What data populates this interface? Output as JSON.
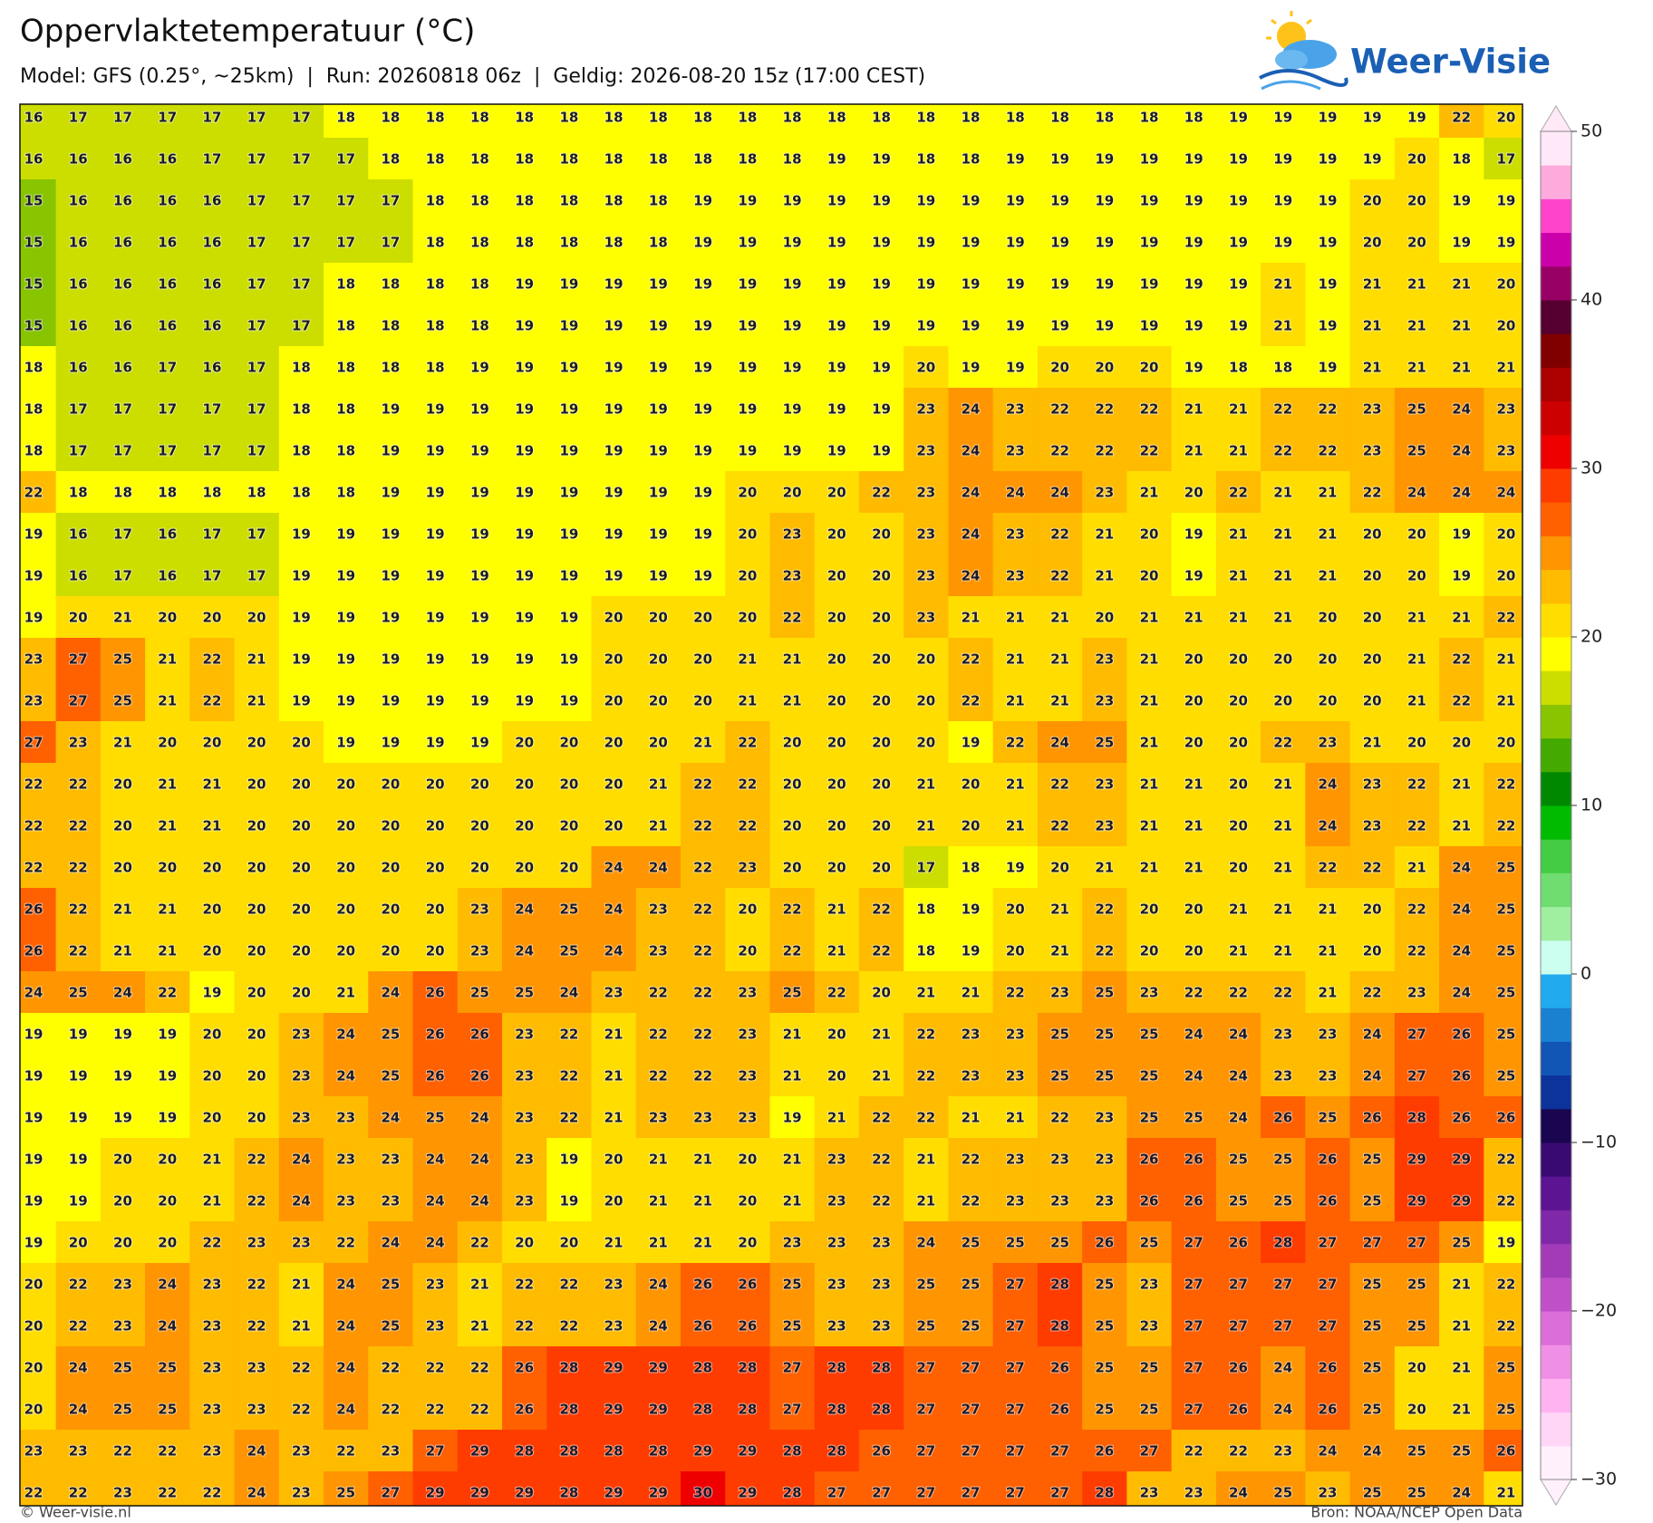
{
  "header": {
    "title": "Oppervlaktetemperatuur (°C)",
    "subtitle": "Model: GFS (0.25°, ~25km)  |  Run: 20260818 06z  |  Geldig: 2026-08-20 15z (17:00 CEST)",
    "logo": "Weer-Visie"
  },
  "map": {
    "values": [
      [
        16,
        17,
        17,
        17,
        17,
        17,
        17,
        18,
        18,
        18,
        18,
        18,
        18,
        18,
        18,
        18,
        18,
        18,
        18,
        18,
        18,
        18,
        18,
        18,
        18,
        18,
        18,
        19,
        19,
        19,
        19,
        19,
        22,
        20
      ],
      [
        16,
        16,
        16,
        16,
        17,
        17,
        17,
        17,
        18,
        18,
        18,
        18,
        18,
        18,
        18,
        18,
        18,
        18,
        19,
        19,
        18,
        18,
        19,
        19,
        19,
        19,
        19,
        19,
        19,
        19,
        19,
        20,
        18,
        17
      ],
      [
        15,
        16,
        16,
        16,
        16,
        17,
        17,
        17,
        17,
        18,
        18,
        18,
        18,
        18,
        18,
        19,
        19,
        19,
        19,
        19,
        19,
        19,
        19,
        19,
        19,
        19,
        19,
        19,
        19,
        19,
        20,
        20,
        19,
        19
      ],
      [
        15,
        16,
        16,
        16,
        16,
        17,
        17,
        17,
        17,
        18,
        18,
        18,
        18,
        18,
        18,
        19,
        19,
        19,
        19,
        19,
        19,
        19,
        19,
        19,
        19,
        19,
        19,
        19,
        19,
        19,
        20,
        20,
        19,
        19
      ],
      [
        15,
        16,
        16,
        16,
        16,
        17,
        17,
        18,
        18,
        18,
        18,
        19,
        19,
        19,
        19,
        19,
        19,
        19,
        19,
        19,
        19,
        19,
        19,
        19,
        19,
        19,
        19,
        19,
        21,
        19,
        21,
        21,
        21,
        20
      ],
      [
        15,
        16,
        16,
        16,
        16,
        17,
        17,
        18,
        18,
        18,
        18,
        19,
        19,
        19,
        19,
        19,
        19,
        19,
        19,
        19,
        19,
        19,
        19,
        19,
        19,
        19,
        19,
        19,
        21,
        19,
        21,
        21,
        21,
        20
      ],
      [
        18,
        16,
        16,
        17,
        16,
        17,
        18,
        18,
        18,
        18,
        19,
        19,
        19,
        19,
        19,
        19,
        19,
        19,
        19,
        19,
        20,
        19,
        19,
        20,
        20,
        20,
        19,
        18,
        18,
        19,
        21,
        21,
        21,
        21
      ],
      [
        18,
        17,
        17,
        17,
        17,
        17,
        18,
        18,
        19,
        19,
        19,
        19,
        19,
        19,
        19,
        19,
        19,
        19,
        19,
        19,
        23,
        24,
        23,
        22,
        22,
        22,
        21,
        21,
        22,
        22,
        23,
        25,
        24,
        23
      ],
      [
        18,
        17,
        17,
        17,
        17,
        17,
        18,
        18,
        19,
        19,
        19,
        19,
        19,
        19,
        19,
        19,
        19,
        19,
        19,
        19,
        23,
        24,
        23,
        22,
        22,
        22,
        21,
        21,
        22,
        22,
        23,
        25,
        24,
        23
      ],
      [
        22,
        18,
        18,
        18,
        18,
        18,
        18,
        18,
        19,
        19,
        19,
        19,
        19,
        19,
        19,
        19,
        20,
        20,
        20,
        22,
        23,
        24,
        24,
        24,
        23,
        21,
        20,
        22,
        21,
        21,
        22,
        24,
        24,
        24
      ],
      [
        19,
        16,
        17,
        16,
        17,
        17,
        19,
        19,
        19,
        19,
        19,
        19,
        19,
        19,
        19,
        19,
        20,
        23,
        20,
        20,
        23,
        24,
        23,
        22,
        21,
        20,
        19,
        21,
        21,
        21,
        20,
        20,
        19,
        20
      ],
      [
        19,
        16,
        17,
        16,
        17,
        17,
        19,
        19,
        19,
        19,
        19,
        19,
        19,
        19,
        19,
        19,
        20,
        23,
        20,
        20,
        23,
        24,
        23,
        22,
        21,
        20,
        19,
        21,
        21,
        21,
        20,
        20,
        19,
        20
      ],
      [
        19,
        20,
        21,
        20,
        20,
        20,
        19,
        19,
        19,
        19,
        19,
        19,
        19,
        20,
        20,
        20,
        20,
        22,
        20,
        20,
        23,
        21,
        21,
        21,
        20,
        21,
        21,
        21,
        21,
        20,
        20,
        21,
        21,
        22
      ],
      [
        23,
        27,
        25,
        21,
        22,
        21,
        19,
        19,
        19,
        19,
        19,
        19,
        19,
        20,
        20,
        20,
        21,
        21,
        20,
        20,
        20,
        22,
        21,
        21,
        23,
        21,
        20,
        20,
        20,
        20,
        20,
        21,
        22,
        21
      ],
      [
        23,
        27,
        25,
        21,
        22,
        21,
        19,
        19,
        19,
        19,
        19,
        19,
        19,
        20,
        20,
        20,
        21,
        21,
        20,
        20,
        20,
        22,
        21,
        21,
        23,
        21,
        20,
        20,
        20,
        20,
        20,
        21,
        22,
        21
      ],
      [
        27,
        23,
        21,
        20,
        20,
        20,
        20,
        19,
        19,
        19,
        19,
        20,
        20,
        20,
        20,
        21,
        22,
        20,
        20,
        20,
        20,
        19,
        22,
        24,
        25,
        21,
        20,
        20,
        22,
        23,
        21,
        20,
        20,
        20
      ],
      [
        22,
        22,
        20,
        21,
        21,
        20,
        20,
        20,
        20,
        20,
        20,
        20,
        20,
        20,
        21,
        22,
        22,
        20,
        20,
        20,
        21,
        20,
        21,
        22,
        23,
        21,
        21,
        20,
        21,
        24,
        23,
        22,
        21,
        22
      ],
      [
        22,
        22,
        20,
        21,
        21,
        20,
        20,
        20,
        20,
        20,
        20,
        20,
        20,
        20,
        21,
        22,
        22,
        20,
        20,
        20,
        21,
        20,
        21,
        22,
        23,
        21,
        21,
        20,
        21,
        24,
        23,
        22,
        21,
        22
      ],
      [
        22,
        22,
        20,
        20,
        20,
        20,
        20,
        20,
        20,
        20,
        20,
        20,
        20,
        24,
        24,
        22,
        23,
        20,
        20,
        20,
        17,
        18,
        19,
        20,
        21,
        21,
        21,
        20,
        21,
        22,
        22,
        21,
        24,
        25
      ],
      [
        26,
        22,
        21,
        21,
        20,
        20,
        20,
        20,
        20,
        20,
        23,
        24,
        25,
        24,
        23,
        22,
        20,
        22,
        21,
        22,
        18,
        19,
        20,
        21,
        22,
        20,
        20,
        21,
        21,
        21,
        20,
        22,
        24,
        25
      ],
      [
        26,
        22,
        21,
        21,
        20,
        20,
        20,
        20,
        20,
        20,
        23,
        24,
        25,
        24,
        23,
        22,
        20,
        22,
        21,
        22,
        18,
        19,
        20,
        21,
        22,
        20,
        20,
        21,
        21,
        21,
        20,
        22,
        24,
        25
      ],
      [
        24,
        25,
        24,
        22,
        19,
        20,
        20,
        21,
        24,
        26,
        25,
        25,
        24,
        23,
        22,
        22,
        23,
        25,
        22,
        20,
        21,
        21,
        22,
        23,
        25,
        23,
        22,
        22,
        22,
        21,
        22,
        23,
        24,
        25
      ],
      [
        19,
        19,
        19,
        19,
        20,
        20,
        23,
        24,
        25,
        26,
        26,
        23,
        22,
        21,
        22,
        22,
        23,
        21,
        20,
        21,
        22,
        23,
        23,
        25,
        25,
        25,
        24,
        24,
        23,
        23,
        24,
        27,
        26,
        25
      ],
      [
        19,
        19,
        19,
        19,
        20,
        20,
        23,
        24,
        25,
        26,
        26,
        23,
        22,
        21,
        22,
        22,
        23,
        21,
        20,
        21,
        22,
        23,
        23,
        25,
        25,
        25,
        24,
        24,
        23,
        23,
        24,
        27,
        26,
        25
      ],
      [
        19,
        19,
        19,
        19,
        20,
        20,
        23,
        23,
        24,
        25,
        24,
        23,
        22,
        21,
        23,
        23,
        23,
        19,
        21,
        22,
        22,
        21,
        21,
        22,
        23,
        25,
        25,
        24,
        26,
        25,
        26,
        28,
        26,
        26
      ],
      [
        19,
        19,
        20,
        20,
        21,
        22,
        24,
        23,
        23,
        24,
        24,
        23,
        19,
        20,
        21,
        21,
        20,
        21,
        23,
        22,
        21,
        22,
        23,
        23,
        23,
        26,
        26,
        25,
        25,
        26,
        25,
        29,
        29,
        22
      ],
      [
        19,
        19,
        20,
        20,
        21,
        22,
        24,
        23,
        23,
        24,
        24,
        23,
        19,
        20,
        21,
        21,
        20,
        21,
        23,
        22,
        21,
        22,
        23,
        23,
        23,
        26,
        26,
        25,
        25,
        26,
        25,
        29,
        29,
        22
      ],
      [
        19,
        20,
        20,
        20,
        22,
        23,
        23,
        22,
        24,
        24,
        22,
        20,
        20,
        21,
        21,
        21,
        20,
        23,
        23,
        23,
        24,
        25,
        25,
        25,
        26,
        25,
        27,
        26,
        28,
        27,
        27,
        27,
        25,
        19
      ],
      [
        20,
        22,
        23,
        24,
        23,
        22,
        21,
        24,
        25,
        23,
        21,
        22,
        22,
        23,
        24,
        26,
        26,
        25,
        23,
        23,
        25,
        25,
        27,
        28,
        25,
        23,
        27,
        27,
        27,
        27,
        25,
        25,
        21,
        22
      ],
      [
        20,
        22,
        23,
        24,
        23,
        22,
        21,
        24,
        25,
        23,
        21,
        22,
        22,
        23,
        24,
        26,
        26,
        25,
        23,
        23,
        25,
        25,
        27,
        28,
        25,
        23,
        27,
        27,
        27,
        27,
        25,
        25,
        21,
        22
      ],
      [
        20,
        24,
        25,
        25,
        23,
        23,
        22,
        24,
        22,
        22,
        22,
        26,
        28,
        29,
        29,
        28,
        28,
        27,
        28,
        28,
        27,
        27,
        27,
        26,
        25,
        25,
        27,
        26,
        24,
        26,
        25,
        20,
        21,
        25
      ],
      [
        20,
        24,
        25,
        25,
        23,
        23,
        22,
        24,
        22,
        22,
        22,
        26,
        28,
        29,
        29,
        28,
        28,
        27,
        28,
        28,
        27,
        27,
        27,
        26,
        25,
        25,
        27,
        26,
        24,
        26,
        25,
        20,
        21,
        25
      ],
      [
        23,
        23,
        22,
        22,
        23,
        24,
        23,
        22,
        23,
        27,
        29,
        28,
        28,
        28,
        28,
        29,
        29,
        28,
        28,
        26,
        27,
        27,
        27,
        27,
        26,
        27,
        22,
        22,
        23,
        24,
        24,
        25,
        25,
        26
      ],
      [
        22,
        22,
        23,
        22,
        22,
        24,
        23,
        25,
        27,
        29,
        29,
        29,
        28,
        29,
        29,
        30,
        29,
        28,
        27,
        27,
        27,
        27,
        27,
        27,
        28,
        23,
        23,
        24,
        25,
        23,
        25,
        25,
        24,
        21
      ]
    ]
  },
  "colorbar": {
    "lim": [
      -30,
      50
    ],
    "ticks": [
      50,
      40,
      30,
      20,
      10,
      0,
      {
        "value": -10,
        "label": "−10"
      },
      {
        "value": -20,
        "label": "−20"
      },
      {
        "value": -30,
        "label": "−30"
      }
    ],
    "colors": [
      "#fff0fc",
      "#ffd6f6",
      "#ffb3f0",
      "#f08fe6",
      "#db6ed8",
      "#bf50c8",
      "#a33bb8",
      "#7f28a8",
      "#5c1493",
      "#3a0a73",
      "#1a0550",
      "#0c3399",
      "#1155b5",
      "#1a80d0",
      "#22aaee",
      "#ccfff0",
      "#a0eea0",
      "#70dd70",
      "#44cc44",
      "#00bb00",
      "#008800",
      "#44aa00",
      "#88c400",
      "#ccdd00",
      "#ffff00",
      "#ffdd00",
      "#ffbb00",
      "#ff9500",
      "#ff6000",
      "#ff3c00",
      "#ee0000",
      "#cc0000",
      "#aa0000",
      "#800000",
      "#550030",
      "#990066",
      "#cc00aa",
      "#ff44cc",
      "#ffaadd",
      "#ffe8f8"
    ]
  },
  "footer": {
    "left": "© Weer-visie.nl",
    "right": "Bron: NOAA/NCEP Open Data"
  }
}
